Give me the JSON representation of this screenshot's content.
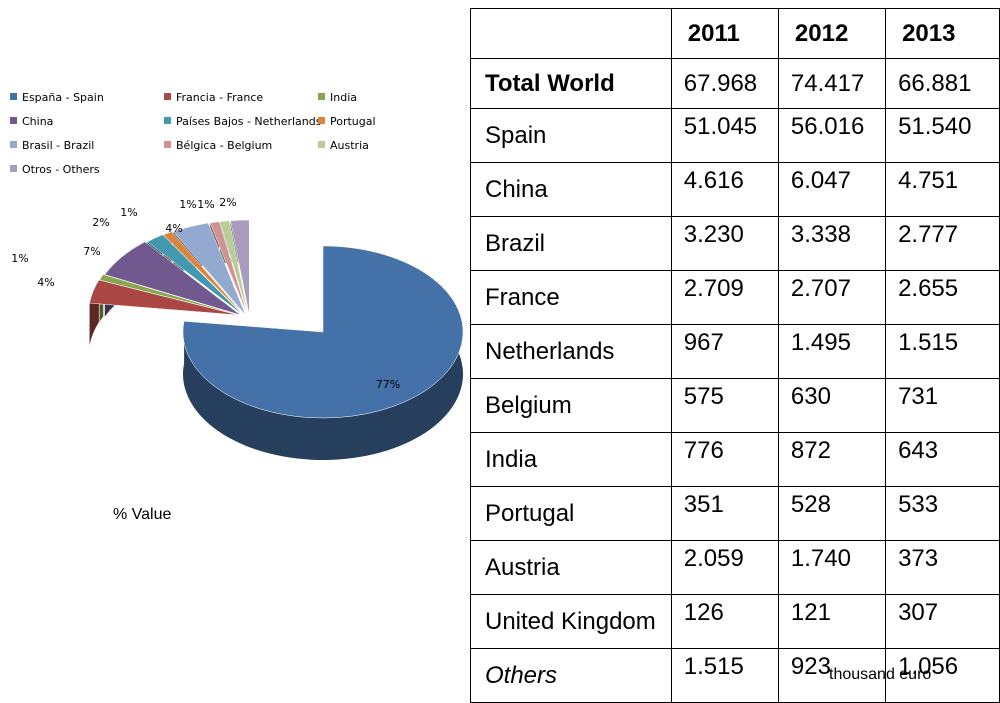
{
  "chart_data": {
    "type": "pie",
    "caption": "% Value",
    "legend": [
      {
        "label": "España - Spain",
        "color": "#4472A8"
      },
      {
        "label": "Francia - France",
        "color": "#AA4643"
      },
      {
        "label": "India",
        "color": "#89A54E"
      },
      {
        "label": "China",
        "color": "#71588F"
      },
      {
        "label": "Países Bajos - Netherlands",
        "color": "#4198AF"
      },
      {
        "label": "Portugal",
        "color": "#DB843D"
      },
      {
        "label": "Brasil - Brazil",
        "color": "#93A9CF"
      },
      {
        "label": "Bélgica - Belgium",
        "color": "#D19392"
      },
      {
        "label": "Austria",
        "color": "#B9CD96"
      },
      {
        "label": "Otros - Others",
        "color": "#A99BBD"
      }
    ],
    "slices": [
      {
        "name": "España - Spain",
        "value": 77,
        "label": "77%"
      },
      {
        "name": "Francia - France",
        "value": 4,
        "label": "4%"
      },
      {
        "name": "India",
        "value": 1,
        "label": "1%"
      },
      {
        "name": "China",
        "value": 7,
        "label": "7%"
      },
      {
        "name": "Países Bajos - Netherlands",
        "value": 2,
        "label": "2%"
      },
      {
        "name": "Portugal",
        "value": 1,
        "label": "1%"
      },
      {
        "name": "Brasil - Brazil",
        "value": 4,
        "label": "4%"
      },
      {
        "name": "Bélgica - Belgium",
        "value": 1,
        "label": "1%"
      },
      {
        "name": "Austria",
        "value": 1,
        "label": "1%"
      },
      {
        "name": "Otros - Others",
        "value": 2,
        "label": "2%"
      }
    ]
  },
  "table": {
    "headers": [
      "",
      "2011",
      "2012",
      "2013"
    ],
    "rows": [
      {
        "label": "Total World",
        "style": "bold",
        "values": [
          "67.968",
          "74.417",
          "66.881"
        ]
      },
      {
        "label": "Spain",
        "style": "",
        "values": [
          "51.045",
          "56.016",
          "51.540"
        ]
      },
      {
        "label": "China",
        "style": "",
        "values": [
          "4.616",
          "6.047",
          "4.751"
        ]
      },
      {
        "label": "Brazil",
        "style": "",
        "values": [
          "3.230",
          "3.338",
          "2.777"
        ]
      },
      {
        "label": "France",
        "style": "",
        "values": [
          "2.709",
          "2.707",
          "2.655"
        ]
      },
      {
        "label": "Netherlands",
        "style": "",
        "values": [
          "967",
          "1.495",
          "1.515"
        ]
      },
      {
        "label": "Belgium",
        "style": "",
        "values": [
          "575",
          "630",
          "731"
        ]
      },
      {
        "label": "India",
        "style": "",
        "values": [
          "776",
          "872",
          "643"
        ]
      },
      {
        "label": "Portugal",
        "style": "",
        "values": [
          "351",
          "528",
          "533"
        ]
      },
      {
        "label": "Austria",
        "style": "",
        "values": [
          "2.059",
          "1.740",
          "373"
        ]
      },
      {
        "label": "United Kingdom",
        "style": "",
        "values": [
          "126",
          "121",
          "307"
        ]
      },
      {
        "label": "Others",
        "style": "italic",
        "values": [
          "1.515",
          "923",
          "1.056"
        ]
      }
    ]
  },
  "unit_note": "thousand euro"
}
